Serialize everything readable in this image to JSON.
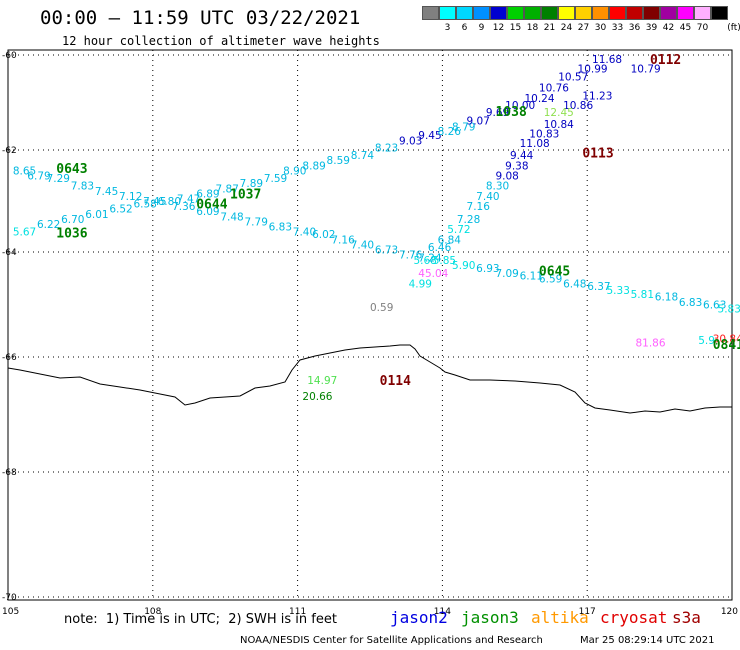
{
  "header": {
    "title": "00:00 – 11:59 UTC 03/22/2021",
    "subtitle": "12 hour collection of altimeter wave heights"
  },
  "color_scale": {
    "unit": "(ft)",
    "entries": [
      {
        "label": "",
        "color": "#808080"
      },
      {
        "label": "3",
        "color": "#00ffff"
      },
      {
        "label": "6",
        "color": "#00d8ff"
      },
      {
        "label": "9",
        "color": "#0090ff"
      },
      {
        "label": "12",
        "color": "#0000d0"
      },
      {
        "label": "15",
        "color": "#00d000"
      },
      {
        "label": "18",
        "color": "#00b000"
      },
      {
        "label": "21",
        "color": "#008000"
      },
      {
        "label": "24",
        "color": "#ffff00"
      },
      {
        "label": "27",
        "color": "#ffd000"
      },
      {
        "label": "30",
        "color": "#ff9000"
      },
      {
        "label": "33",
        "color": "#ff0000"
      },
      {
        "label": "36",
        "color": "#c00000"
      },
      {
        "label": "39",
        "color": "#800000"
      },
      {
        "label": "42",
        "color": "#a000a0"
      },
      {
        "label": "45",
        "color": "#ff00ff"
      },
      {
        "label": "70",
        "color": "#ffb0ff"
      },
      {
        "label": "",
        "color": "#000000"
      }
    ]
  },
  "axes": {
    "lon_labels": [
      "105",
      "108",
      "111",
      "114",
      "117",
      "120"
    ],
    "lat_labels": [
      "-60",
      "-62",
      "-64",
      "-66",
      "-68",
      "-70"
    ]
  },
  "pass_labels": [
    {
      "text": "0643",
      "color": "#008000",
      "lon": 106.0,
      "lat": -62.35
    },
    {
      "text": "1036",
      "color": "#008000",
      "lon": 106.0,
      "lat": -63.62
    },
    {
      "text": "1037",
      "color": "#008000",
      "lon": 109.6,
      "lat": -62.85
    },
    {
      "text": "0644",
      "color": "#008000",
      "lon": 108.9,
      "lat": -63.05
    },
    {
      "text": "1038",
      "color": "#008000",
      "lon": 115.1,
      "lat": -61.18
    },
    {
      "text": "0113",
      "color": "#800000",
      "lon": 116.9,
      "lat": -62.05
    },
    {
      "text": "0112",
      "color": "#800000",
      "lon": 118.3,
      "lat": -60.08
    },
    {
      "text": "0645",
      "color": "#008000",
      "lon": 116.0,
      "lat": -64.35
    },
    {
      "text": "0114",
      "color": "#800000",
      "lon": 112.7,
      "lat": -66.4
    },
    {
      "text": "0841",
      "color": "#008000",
      "lon": 119.6,
      "lat": -65.75
    }
  ],
  "observations": [
    {
      "v": "8.65",
      "c": "#00b8e0",
      "lon": 105.1,
      "lat": -62.4
    },
    {
      "v": "6.79",
      "c": "#00b8e0",
      "lon": 105.4,
      "lat": -62.5
    },
    {
      "v": "7.29",
      "c": "#00b8e0",
      "lon": 105.8,
      "lat": -62.55
    },
    {
      "v": "7.83",
      "c": "#00b8e0",
      "lon": 106.3,
      "lat": -62.7
    },
    {
      "v": "7.45",
      "c": "#00b8e0",
      "lon": 106.8,
      "lat": -62.8
    },
    {
      "v": "7.12",
      "c": "#00b8e0",
      "lon": 107.3,
      "lat": -62.9
    },
    {
      "v": "7.45",
      "c": "#00b8e0",
      "lon": 107.8,
      "lat": -63.0
    },
    {
      "v": "6.80",
      "c": "#00b8e0",
      "lon": 108.1,
      "lat": -63.0
    },
    {
      "v": "7.47",
      "c": "#00b8e0",
      "lon": 108.5,
      "lat": -62.95
    },
    {
      "v": "6.89",
      "c": "#00b8e0",
      "lon": 108.9,
      "lat": -62.85
    },
    {
      "v": "7.87",
      "c": "#00b8e0",
      "lon": 109.3,
      "lat": -62.75
    },
    {
      "v": "7.89",
      "c": "#00b8e0",
      "lon": 109.8,
      "lat": -62.65
    },
    {
      "v": "7.59",
      "c": "#00b8e0",
      "lon": 110.3,
      "lat": -62.55
    },
    {
      "v": "8.90",
      "c": "#00b8e0",
      "lon": 110.7,
      "lat": -62.4
    },
    {
      "v": "8.89",
      "c": "#00b8e0",
      "lon": 111.1,
      "lat": -62.3
    },
    {
      "v": "8.59",
      "c": "#00b8e0",
      "lon": 111.6,
      "lat": -62.2
    },
    {
      "v": "8.74",
      "c": "#00b8e0",
      "lon": 112.1,
      "lat": -62.1
    },
    {
      "v": "8.23",
      "c": "#00b8e0",
      "lon": 112.6,
      "lat": -61.95
    },
    {
      "v": "9.03",
      "c": "#0000c0",
      "lon": 113.1,
      "lat": -61.8
    },
    {
      "v": "9.45",
      "c": "#0000c0",
      "lon": 113.5,
      "lat": -61.68
    },
    {
      "v": "8.26",
      "c": "#00b8e0",
      "lon": 113.9,
      "lat": -61.6
    },
    {
      "v": "8.79",
      "c": "#00b8e0",
      "lon": 114.2,
      "lat": -61.5
    },
    {
      "v": "9.07",
      "c": "#0000c0",
      "lon": 114.5,
      "lat": -61.38
    },
    {
      "v": "9.69",
      "c": "#0000c0",
      "lon": 114.9,
      "lat": -61.2
    },
    {
      "v": "10.00",
      "c": "#0000c0",
      "lon": 115.3,
      "lat": -61.05
    },
    {
      "v": "10.24",
      "c": "#0000c0",
      "lon": 115.7,
      "lat": -60.9
    },
    {
      "v": "10.76",
      "c": "#0000c0",
      "lon": 116.0,
      "lat": -60.68
    },
    {
      "v": "10.57",
      "c": "#0000c0",
      "lon": 116.4,
      "lat": -60.45
    },
    {
      "v": "10.99",
      "c": "#0000c0",
      "lon": 116.8,
      "lat": -60.28
    },
    {
      "v": "11.68",
      "c": "#0000c0",
      "lon": 117.1,
      "lat": -60.08
    },
    {
      "v": "10.79",
      "c": "#0000c0",
      "lon": 117.9,
      "lat": -60.28
    },
    {
      "v": "11.23",
      "c": "#0000c0",
      "lon": 116.9,
      "lat": -60.85
    },
    {
      "v": "10.86",
      "c": "#0000c0",
      "lon": 116.5,
      "lat": -61.05
    },
    {
      "v": "12.45",
      "c": "#90e050",
      "lon": 116.1,
      "lat": -61.2
    },
    {
      "v": "10.84",
      "c": "#0000c0",
      "lon": 116.1,
      "lat": -61.45
    },
    {
      "v": "10.83",
      "c": "#0000c0",
      "lon": 115.8,
      "lat": -61.65
    },
    {
      "v": "11.08",
      "c": "#0000c0",
      "lon": 115.6,
      "lat": -61.85
    },
    {
      "v": "9.44",
      "c": "#0000c0",
      "lon": 115.4,
      "lat": -62.1
    },
    {
      "v": "9.38",
      "c": "#0000c0",
      "lon": 115.3,
      "lat": -62.3
    },
    {
      "v": "9.08",
      "c": "#0000c0",
      "lon": 115.1,
      "lat": -62.5
    },
    {
      "v": "8.30",
      "c": "#00b8e0",
      "lon": 114.9,
      "lat": -62.7
    },
    {
      "v": "7.40",
      "c": "#00b8e0",
      "lon": 114.7,
      "lat": -62.9
    },
    {
      "v": "7.16",
      "c": "#00b8e0",
      "lon": 114.5,
      "lat": -63.1
    },
    {
      "v": "7.28",
      "c": "#00b8e0",
      "lon": 114.3,
      "lat": -63.35
    },
    {
      "v": "5.72",
      "c": "#00e0e0",
      "lon": 114.1,
      "lat": -63.55
    },
    {
      "v": "6.84",
      "c": "#00b8e0",
      "lon": 113.9,
      "lat": -63.75
    },
    {
      "v": "6.46",
      "c": "#00b8e0",
      "lon": 113.7,
      "lat": -63.9
    },
    {
      "v": "5.68",
      "c": "#00e0e0",
      "lon": 113.4,
      "lat": -64.15
    },
    {
      "v": "45.04",
      "c": "#ff60ff",
      "lon": 113.5,
      "lat": -64.4
    },
    {
      "v": "4.99",
      "c": "#00e0e0",
      "lon": 113.3,
      "lat": -64.6
    },
    {
      "v": "0.59",
      "c": "#808080",
      "lon": 112.5,
      "lat": -65.05
    },
    {
      "v": "5.67",
      "c": "#00e0e0",
      "lon": 105.1,
      "lat": -63.6
    },
    {
      "v": "6.22",
      "c": "#00b8e0",
      "lon": 105.6,
      "lat": -63.45
    },
    {
      "v": "6.70",
      "c": "#00b8e0",
      "lon": 106.1,
      "lat": -63.35
    },
    {
      "v": "6.01",
      "c": "#00b8e0",
      "lon": 106.6,
      "lat": -63.25
    },
    {
      "v": "6.52",
      "c": "#00b8e0",
      "lon": 107.1,
      "lat": -63.15
    },
    {
      "v": "6.58",
      "c": "#00b8e0",
      "lon": 107.6,
      "lat": -63.05
    },
    {
      "v": "7.36",
      "c": "#00b8e0",
      "lon": 108.4,
      "lat": -63.1
    },
    {
      "v": "6.09",
      "c": "#00b8e0",
      "lon": 108.9,
      "lat": -63.2
    },
    {
      "v": "7.48",
      "c": "#00b8e0",
      "lon": 109.4,
      "lat": -63.3
    },
    {
      "v": "7.79",
      "c": "#00b8e0",
      "lon": 109.9,
      "lat": -63.4
    },
    {
      "v": "6.83",
      "c": "#00b8e0",
      "lon": 110.4,
      "lat": -63.5
    },
    {
      "v": "7.40",
      "c": "#00b8e0",
      "lon": 110.9,
      "lat": -63.6
    },
    {
      "v": "6.02",
      "c": "#00b8e0",
      "lon": 111.3,
      "lat": -63.65
    },
    {
      "v": "7.16",
      "c": "#00b8e0",
      "lon": 111.7,
      "lat": -63.75
    },
    {
      "v": "7.40",
      "c": "#00b8e0",
      "lon": 112.1,
      "lat": -63.85
    },
    {
      "v": "6.73",
      "c": "#00b8e0",
      "lon": 112.6,
      "lat": -63.95
    },
    {
      "v": "7.76",
      "c": "#00b8e0",
      "lon": 113.1,
      "lat": -64.05
    },
    {
      "v": "7.24",
      "c": "#00b8e0",
      "lon": 113.5,
      "lat": -64.1
    },
    {
      "v": "5.85",
      "c": "#00e0e0",
      "lon": 113.8,
      "lat": -64.15
    },
    {
      "v": "5.90",
      "c": "#00e0e0",
      "lon": 114.2,
      "lat": -64.25
    },
    {
      "v": "6.93",
      "c": "#00b8e0",
      "lon": 114.7,
      "lat": -64.3
    },
    {
      "v": "7.09",
      "c": "#00b8e0",
      "lon": 115.1,
      "lat": -64.4
    },
    {
      "v": "6.11",
      "c": "#00b8e0",
      "lon": 115.6,
      "lat": -64.45
    },
    {
      "v": "6.59",
      "c": "#00b8e0",
      "lon": 116.0,
      "lat": -64.5
    },
    {
      "v": "6.48",
      "c": "#00b8e0",
      "lon": 116.5,
      "lat": -64.6
    },
    {
      "v": "6.37",
      "c": "#00b8e0",
      "lon": 117.0,
      "lat": -64.65
    },
    {
      "v": "5.33",
      "c": "#00e0e0",
      "lon": 117.4,
      "lat": -64.72
    },
    {
      "v": "5.81",
      "c": "#00e0e0",
      "lon": 117.9,
      "lat": -64.8
    },
    {
      "v": "6.18",
      "c": "#00b8e0",
      "lon": 118.4,
      "lat": -64.85
    },
    {
      "v": "6.83",
      "c": "#00b8e0",
      "lon": 118.9,
      "lat": -64.95
    },
    {
      "v": "6.63",
      "c": "#00b8e0",
      "lon": 119.4,
      "lat": -65.0
    },
    {
      "v": "5.83",
      "c": "#00e0e0",
      "lon": 119.7,
      "lat": -65.08
    },
    {
      "v": "81.86",
      "c": "#ff60ff",
      "lon": 118.0,
      "lat": -65.72
    },
    {
      "v": "5.9",
      "c": "#00e0e0",
      "lon": 119.3,
      "lat": -65.68
    },
    {
      "v": "30.84",
      "c": "#ff2020",
      "lon": 119.6,
      "lat": -65.65
    },
    {
      "v": "14.97",
      "c": "#50e050",
      "lon": 111.2,
      "lat": -66.4
    },
    {
      "v": "20.66",
      "c": "#008000",
      "lon": 111.1,
      "lat": -66.68
    }
  ],
  "footer": {
    "note": "note:  1) Time is in UTC;  2) SWH is in feet",
    "satellites": [
      {
        "name": "jason2",
        "color": "#0000e0"
      },
      {
        "name": "jason3",
        "color": "#009000"
      },
      {
        "name": "altika",
        "color": "#ff9900"
      },
      {
        "name": "cryosat",
        "color": "#e00000"
      },
      {
        "name": "s3a",
        "color": "#a00000"
      }
    ],
    "credit": "NOAA/NESDIS Center for Satellite Applications and Research",
    "timestamp": "Mar 25 08:29:14 UTC 2021"
  }
}
